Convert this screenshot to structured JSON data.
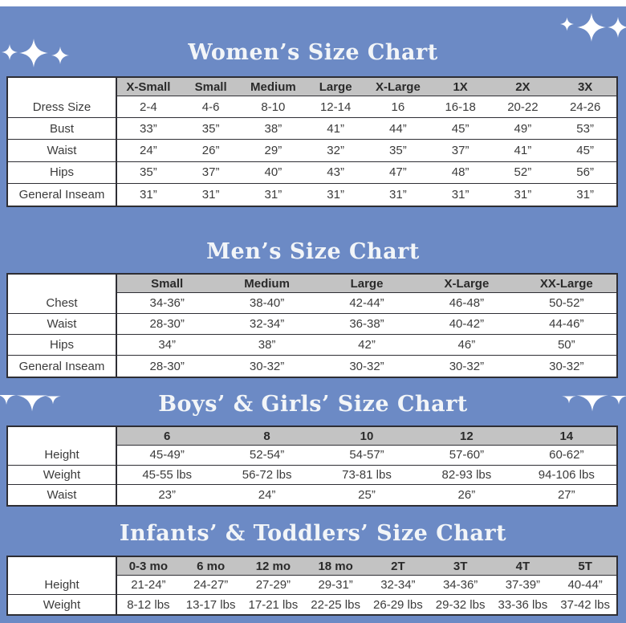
{
  "page": {
    "background_color": "#6c8ac5",
    "top_strip_color": "#ffffff",
    "title_color": "#f2f5f8",
    "table_header_color": "#c3c3c3",
    "table_border_color": "#2e2e34",
    "text_color": "#3b3b3b",
    "sparkle_color": "#ffffff"
  },
  "icons": {
    "sparkle": "four-point-star-sparkle",
    "sparkle_half": "four-point-star-sparkle-bottom-half"
  },
  "tables": [
    {
      "id": "womens",
      "title": "Women’s Size Chart",
      "columns": [
        "X-Small",
        "Small",
        "Medium",
        "Large",
        "X-Large",
        "1X",
        "2X",
        "3X"
      ],
      "rows": [
        {
          "label": "Dress Size",
          "values": [
            "2-4",
            "4-6",
            "8-10",
            "12-14",
            "16",
            "16-18",
            "20-22",
            "24-26"
          ]
        },
        {
          "label": "Bust",
          "values": [
            "33”",
            "35”",
            "38”",
            "41”",
            "44”",
            "45”",
            "49”",
            "53”"
          ]
        },
        {
          "label": "Waist",
          "values": [
            "24”",
            "26”",
            "29”",
            "32”",
            "35”",
            "37”",
            "41”",
            "45”"
          ]
        },
        {
          "label": "Hips",
          "values": [
            "35”",
            "37”",
            "40”",
            "43”",
            "47”",
            "48”",
            "52”",
            "56”"
          ]
        },
        {
          "label": "General Inseam",
          "values": [
            "31”",
            "31”",
            "31”",
            "31”",
            "31”",
            "31”",
            "31”",
            "31”"
          ]
        }
      ]
    },
    {
      "id": "mens",
      "title": "Men’s Size Chart",
      "columns": [
        "Small",
        "Medium",
        "Large",
        "X-Large",
        "XX-Large"
      ],
      "rows": [
        {
          "label": "Chest",
          "values": [
            "34-36”",
            "38-40”",
            "42-44”",
            "46-48”",
            "50-52”"
          ]
        },
        {
          "label": "Waist",
          "values": [
            "28-30”",
            "32-34”",
            "36-38”",
            "40-42”",
            "44-46”"
          ]
        },
        {
          "label": "Hips",
          "values": [
            "34”",
            "38”",
            "42”",
            "46”",
            "50”"
          ]
        },
        {
          "label": "General Inseam",
          "values": [
            "28-30”",
            "30-32”",
            "30-32”",
            "30-32”",
            "30-32”"
          ]
        }
      ]
    },
    {
      "id": "boys-girls",
      "title": "Boys’ & Girls’ Size Chart",
      "columns": [
        "6",
        "8",
        "10",
        "12",
        "14"
      ],
      "rows": [
        {
          "label": "Height",
          "values": [
            "45-49”",
            "52-54”",
            "54-57”",
            "57-60”",
            "60-62”"
          ]
        },
        {
          "label": "Weight",
          "values": [
            "45-55 lbs",
            "56-72 lbs",
            "73-81 lbs",
            "82-93 lbs",
            "94-106 lbs"
          ]
        },
        {
          "label": "Waist",
          "values": [
            "23”",
            "24”",
            "25”",
            "26”",
            "27”"
          ]
        }
      ]
    },
    {
      "id": "infants-toddlers",
      "title": "Infants’ & Toddlers’ Size Chart",
      "columns": [
        "0-3 mo",
        "6 mo",
        "12 mo",
        "18 mo",
        "2T",
        "3T",
        "4T",
        "5T"
      ],
      "rows": [
        {
          "label": "Height",
          "values": [
            "21-24”",
            "24-27”",
            "27-29”",
            "29-31”",
            "32-34”",
            "34-36”",
            "37-39”",
            "40-44”"
          ]
        },
        {
          "label": "Weight",
          "values": [
            "8-12 lbs",
            "13-17 lbs",
            "17-21 lbs",
            "22-25 lbs",
            "26-29 lbs",
            "29-32 lbs",
            "33-36 lbs",
            "37-42 lbs"
          ]
        }
      ]
    }
  ],
  "layout_note": ""
}
